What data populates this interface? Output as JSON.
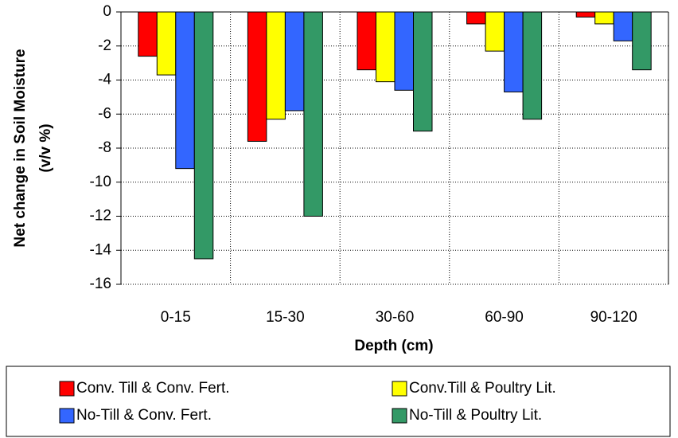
{
  "chart_data": {
    "type": "bar",
    "x_label": "Depth (cm)",
    "y_label": "Net change in Soil Moisture",
    "y_label_unit": "(v/v %)",
    "categories": [
      "0-15",
      "15-30",
      "30-60",
      "60-90",
      "90-120"
    ],
    "series": [
      {
        "name": "Conv. Till & Conv. Fert.",
        "color": "#ff0000",
        "values": [
          -2.6,
          -7.6,
          -3.4,
          -0.7,
          -0.3
        ]
      },
      {
        "name": "Conv.Till & Poultry Lit.",
        "color": "#ffff00",
        "values": [
          -3.7,
          -6.3,
          -4.1,
          -2.3,
          -0.7
        ]
      },
      {
        "name": "No-Till & Conv. Fert.",
        "color": "#3366ff",
        "values": [
          -9.2,
          -5.8,
          -4.6,
          -4.7,
          -1.7
        ]
      },
      {
        "name": "No-Till & Poultry Lit.",
        "color": "#339966",
        "values": [
          -14.5,
          -12.0,
          -7.0,
          -6.3,
          -3.4
        ]
      }
    ],
    "ylim": [
      -16,
      0
    ],
    "yticks": [
      0,
      -2,
      -4,
      -6,
      -8,
      -10,
      -12,
      -14,
      -16
    ],
    "grid": true
  }
}
